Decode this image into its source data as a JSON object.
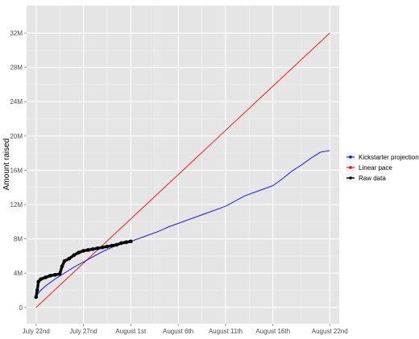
{
  "chart_data": {
    "type": "line",
    "title": "",
    "xlabel": "",
    "ylabel": "Amount raised",
    "grid": true,
    "legend_position": "right",
    "x_axis": {
      "type": "date",
      "range": [
        "2013-07-21",
        "2013-08-23"
      ],
      "ticks": [
        {
          "value": "2013-07-22",
          "label": "July 22nd"
        },
        {
          "value": "2013-07-27",
          "label": "July 27nd"
        },
        {
          "value": "2013-08-01",
          "label": "August 1st"
        },
        {
          "value": "2013-08-06",
          "label": "August 6th"
        },
        {
          "value": "2013-08-11",
          "label": "August 11th"
        },
        {
          "value": "2013-08-16",
          "label": "August 16th"
        },
        {
          "value": "2013-08-22",
          "label": "August 22nd"
        }
      ]
    },
    "y_axis": {
      "range": [
        -1.9,
        35.2
      ],
      "unit": "M",
      "ticks": [
        {
          "value": 0,
          "label": "0"
        },
        {
          "value": 4,
          "label": "4M"
        },
        {
          "value": 8,
          "label": "8M"
        },
        {
          "value": 12,
          "label": "12M"
        },
        {
          "value": 16,
          "label": "16M"
        },
        {
          "value": 20,
          "label": "20M"
        },
        {
          "value": 24,
          "label": "24M"
        },
        {
          "value": 28,
          "label": "28M"
        },
        {
          "value": 32,
          "label": "32M"
        }
      ]
    },
    "series": [
      {
        "name": "Kickstarter projection",
        "color": "#0000ff",
        "marker": "none",
        "points": [
          {
            "x": "2013-07-22",
            "y": 1.3
          },
          {
            "x": "2013-07-22T12:00",
            "y": 2.0
          },
          {
            "x": "2013-07-23",
            "y": 2.5
          },
          {
            "x": "2013-07-23T12:00",
            "y": 2.9
          },
          {
            "x": "2013-07-24",
            "y": 3.3
          },
          {
            "x": "2013-07-25",
            "y": 4.0
          },
          {
            "x": "2013-07-26",
            "y": 4.7
          },
          {
            "x": "2013-07-27",
            "y": 5.3
          },
          {
            "x": "2013-07-28",
            "y": 5.9
          },
          {
            "x": "2013-07-29",
            "y": 6.5
          },
          {
            "x": "2013-07-30",
            "y": 7.0
          },
          {
            "x": "2013-07-31",
            "y": 7.4
          },
          {
            "x": "2013-08-01",
            "y": 7.7
          },
          {
            "x": "2013-08-02",
            "y": 8.1
          },
          {
            "x": "2013-08-03",
            "y": 8.5
          },
          {
            "x": "2013-08-04",
            "y": 8.9
          },
          {
            "x": "2013-08-05",
            "y": 9.4
          },
          {
            "x": "2013-08-06",
            "y": 9.8
          },
          {
            "x": "2013-08-07",
            "y": 10.2
          },
          {
            "x": "2013-08-08",
            "y": 10.6
          },
          {
            "x": "2013-08-09",
            "y": 11.0
          },
          {
            "x": "2013-08-10",
            "y": 11.4
          },
          {
            "x": "2013-08-11",
            "y": 11.8
          },
          {
            "x": "2013-08-12",
            "y": 12.4
          },
          {
            "x": "2013-08-13",
            "y": 13.0
          },
          {
            "x": "2013-08-14",
            "y": 13.4
          },
          {
            "x": "2013-08-15",
            "y": 13.8
          },
          {
            "x": "2013-08-16",
            "y": 14.2
          },
          {
            "x": "2013-08-17",
            "y": 15.0
          },
          {
            "x": "2013-08-18",
            "y": 15.9
          },
          {
            "x": "2013-08-19",
            "y": 16.6
          },
          {
            "x": "2013-08-20",
            "y": 17.4
          },
          {
            "x": "2013-08-21",
            "y": 18.1
          },
          {
            "x": "2013-08-22",
            "y": 18.3
          }
        ]
      },
      {
        "name": "Linear pace",
        "color": "#ff0000",
        "marker": "none",
        "points": [
          {
            "x": "2013-07-22",
            "y": 0
          },
          {
            "x": "2013-08-22",
            "y": 32
          }
        ]
      },
      {
        "name": "Raw data",
        "color": "#000000",
        "marker": "point",
        "points": [
          {
            "x": "2013-07-22",
            "y": 1.2
          },
          {
            "x": "2013-07-22T03:00",
            "y": 2.0
          },
          {
            "x": "2013-07-22T06:00",
            "y": 3.0
          },
          {
            "x": "2013-07-22T12:00",
            "y": 3.3
          },
          {
            "x": "2013-07-23",
            "y": 3.5
          },
          {
            "x": "2013-07-23T12:00",
            "y": 3.7
          },
          {
            "x": "2013-07-24",
            "y": 3.8
          },
          {
            "x": "2013-07-24T12:00",
            "y": 3.9
          },
          {
            "x": "2013-07-24T18:00",
            "y": 4.8
          },
          {
            "x": "2013-07-25",
            "y": 5.4
          },
          {
            "x": "2013-07-25T12:00",
            "y": 5.7
          },
          {
            "x": "2013-07-26",
            "y": 6.1
          },
          {
            "x": "2013-07-26T12:00",
            "y": 6.4
          },
          {
            "x": "2013-07-27",
            "y": 6.6
          },
          {
            "x": "2013-07-27T12:00",
            "y": 6.7
          },
          {
            "x": "2013-07-28",
            "y": 6.8
          },
          {
            "x": "2013-07-28T12:00",
            "y": 6.9
          },
          {
            "x": "2013-07-29",
            "y": 7.0
          },
          {
            "x": "2013-07-29T12:00",
            "y": 7.1
          },
          {
            "x": "2013-07-30",
            "y": 7.2
          },
          {
            "x": "2013-07-30T12:00",
            "y": 7.3
          },
          {
            "x": "2013-07-31",
            "y": 7.5
          },
          {
            "x": "2013-07-31T12:00",
            "y": 7.6
          },
          {
            "x": "2013-08-01",
            "y": 7.7
          }
        ]
      }
    ]
  }
}
